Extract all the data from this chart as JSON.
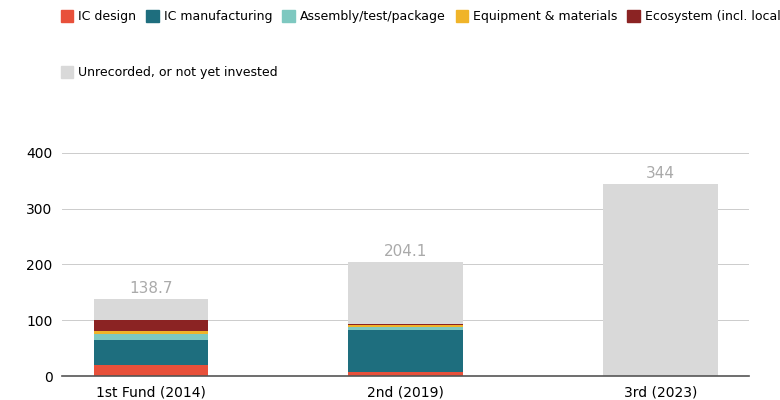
{
  "categories": [
    "1st Fund (2014)",
    "2nd (2019)",
    "3rd (2023)"
  ],
  "segments": {
    "IC design": [
      20.0,
      8.0,
      0.0
    ],
    "IC manufacturing": [
      45.0,
      75.0,
      0.0
    ],
    "Assembly/test/package": [
      10.0,
      4.0,
      0.0
    ],
    "Equipment & materials": [
      5.0,
      4.0,
      0.0
    ],
    "Ecosystem (incl. local funds)": [
      20.0,
      3.0,
      0.0
    ],
    "Unrecorded, or not yet invested": [
      38.7,
      110.1,
      344.0
    ]
  },
  "totals": [
    138.7,
    204.1,
    344
  ],
  "colors": {
    "IC design": "#e8503a",
    "IC manufacturing": "#1e6e7e",
    "Assembly/test/package": "#7ec8c0",
    "Equipment & materials": "#f0b429",
    "Ecosystem (incl. local funds)": "#8b2323",
    "Unrecorded, or not yet invested": "#d9d9d9"
  },
  "segment_order": [
    "IC design",
    "IC manufacturing",
    "Assembly/test/package",
    "Equipment & materials",
    "Ecosystem (incl. local funds)",
    "Unrecorded, or not yet invested"
  ],
  "ylim": [
    0,
    430
  ],
  "yticks": [
    0,
    100,
    200,
    300,
    400
  ],
  "bar_width": 0.45,
  "figsize": [
    7.8,
    4.0
  ],
  "dpi": 100,
  "bg_color": "#ffffff",
  "total_label_color": "#aaaaaa",
  "total_label_fontsize": 11,
  "tick_fontsize": 10,
  "legend_fontsize": 9
}
